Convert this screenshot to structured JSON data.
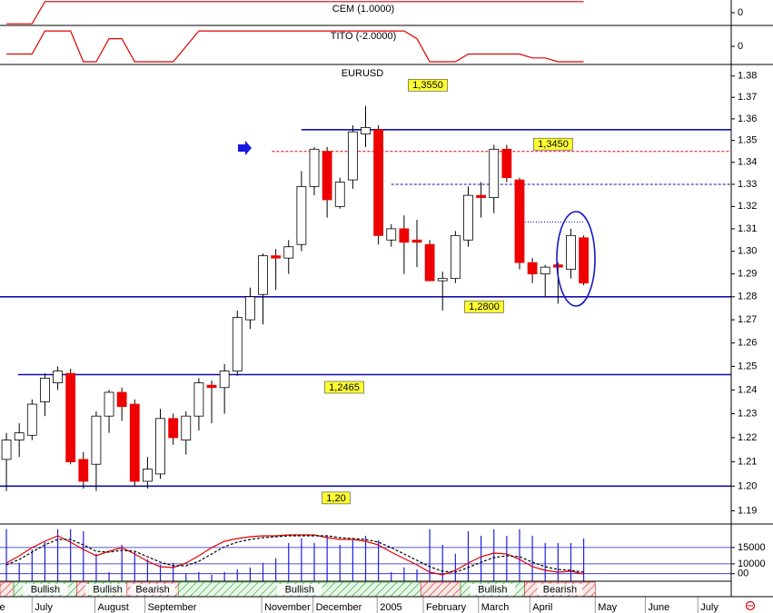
{
  "chart_data": [
    {
      "type": "line",
      "title": "CEM (1.0000)",
      "ylim": [
        -1.15,
        1.15
      ],
      "yticks": [
        0
      ],
      "series": [
        {
          "name": "CEM (1.0000)",
          "color": "#e00000",
          "values": [
            -1,
            -1,
            -1,
            1,
            1,
            1,
            1,
            1,
            1,
            1,
            1,
            1,
            1,
            1,
            1,
            1,
            1,
            1,
            1,
            1,
            1,
            1,
            1,
            1,
            1,
            1,
            1,
            1,
            1,
            1,
            1,
            1,
            1,
            1,
            1,
            1,
            1,
            1,
            1,
            1,
            1,
            1,
            1,
            1,
            1,
            1
          ]
        }
      ]
    },
    {
      "type": "line",
      "title": "TITO (-2.0000)",
      "ylim": [
        -2.35,
        2.6
      ],
      "yticks": [
        0
      ],
      "series": [
        {
          "name": "TITO (-2.0000)",
          "color": "#e00000",
          "values": [
            -1,
            -1,
            -1,
            2,
            2,
            2,
            -2,
            -2,
            1,
            1,
            -2,
            -2,
            -2,
            -2,
            0,
            2,
            2,
            2,
            2,
            2,
            2,
            2,
            2,
            2,
            2,
            2,
            2,
            2,
            2,
            2,
            2,
            2,
            1,
            -2,
            -2,
            -2,
            -1,
            -1,
            -1,
            -1,
            -1,
            -1.5,
            -1.5,
            -2,
            -2,
            -2
          ]
        }
      ]
    },
    {
      "type": "candlestick",
      "title": "EURUSD",
      "log_scale": true,
      "x": [
        0,
        1,
        2,
        3,
        4,
        5,
        6,
        7,
        8,
        9,
        10,
        11,
        12,
        13,
        14,
        15,
        16,
        17,
        18,
        19,
        20,
        21,
        22,
        23,
        24,
        25,
        26,
        27,
        28,
        29,
        30,
        31,
        32,
        33,
        34,
        35,
        36,
        37,
        38,
        39,
        40,
        41,
        42,
        43,
        44,
        45
      ],
      "xlim": [
        -0.5,
        56.5
      ],
      "xticks": [
        {
          "value": -0.75,
          "label": "e"
        },
        {
          "value": 2.0,
          "label": "July"
        },
        {
          "value": 6.9,
          "label": "August"
        },
        {
          "value": 10.8,
          "label": "September"
        },
        {
          "value": 19.9,
          "label": "November"
        },
        {
          "value": 23.9,
          "label": "December"
        },
        {
          "value": 28.9,
          "label": "2005"
        },
        {
          "value": 32.5,
          "label": "February"
        },
        {
          "value": 36.8,
          "label": "March"
        },
        {
          "value": 40.8,
          "label": "April"
        },
        {
          "value": 45.9,
          "label": "May"
        },
        {
          "value": 49.8,
          "label": "June"
        },
        {
          "value": 53.9,
          "label": "July"
        }
      ],
      "ylim": [
        1.185,
        1.385
      ],
      "yticks": [
        1.19,
        {
          "value": 1.2,
          "label": "1.20"
        },
        1.21,
        1.22,
        1.23,
        1.24,
        1.25,
        1.26,
        1.27,
        1.28,
        1.29,
        {
          "value": 1.3,
          "label": "1.30"
        },
        1.31,
        1.32,
        1.33,
        1.34,
        1.35,
        1.36,
        1.37,
        1.38
      ],
      "up_color": "#ffffff",
      "down_color": "#ee0000",
      "open": [
        1.211,
        1.219,
        1.221,
        1.235,
        1.243,
        1.247,
        1.211,
        1.209,
        1.229,
        1.239,
        1.234,
        1.202,
        1.205,
        1.228,
        1.219,
        1.229,
        1.242,
        1.241,
        1.248,
        1.27,
        1.281,
        1.298,
        1.297,
        1.303,
        1.329,
        1.345,
        1.32,
        1.332,
        1.353,
        1.355,
        1.305,
        1.31,
        1.305,
        1.303,
        1.287,
        1.288,
        1.305,
        1.325,
        1.324,
        1.346,
        1.332,
        1.295,
        1.29,
        1.294,
        1.292,
        1.306
      ],
      "high": [
        1.222,
        1.226,
        1.236,
        1.247,
        1.25,
        1.249,
        1.214,
        1.231,
        1.24,
        1.241,
        1.236,
        1.212,
        1.232,
        1.23,
        1.231,
        1.245,
        1.244,
        1.251,
        1.274,
        1.284,
        1.299,
        1.301,
        1.305,
        1.336,
        1.347,
        1.347,
        1.333,
        1.357,
        1.366,
        1.357,
        1.312,
        1.316,
        1.314,
        1.305,
        1.291,
        1.309,
        1.329,
        1.331,
        1.348,
        1.348,
        1.333,
        1.297,
        1.294,
        1.295,
        1.31,
        1.307
      ],
      "low": [
        1.198,
        1.212,
        1.219,
        1.229,
        1.24,
        1.209,
        1.199,
        1.198,
        1.222,
        1.227,
        1.2,
        1.199,
        1.203,
        1.217,
        1.213,
        1.223,
        1.226,
        1.23,
        1.246,
        1.266,
        1.268,
        1.283,
        1.29,
        1.3,
        1.325,
        1.315,
        1.319,
        1.328,
        1.347,
        1.303,
        1.302,
        1.29,
        1.293,
        1.287,
        1.274,
        1.286,
        1.302,
        1.315,
        1.317,
        1.331,
        1.292,
        1.286,
        1.28,
        1.277,
        1.288,
        1.285
      ],
      "close": [
        1.219,
        1.222,
        1.234,
        1.245,
        1.248,
        1.21,
        1.202,
        1.229,
        1.239,
        1.233,
        1.202,
        1.207,
        1.228,
        1.22,
        1.229,
        1.243,
        1.241,
        1.248,
        1.271,
        1.28,
        1.298,
        1.297,
        1.302,
        1.329,
        1.346,
        1.323,
        1.331,
        1.354,
        1.356,
        1.307,
        1.31,
        1.304,
        1.304,
        1.287,
        1.288,
        1.307,
        1.325,
        1.324,
        1.346,
        1.333,
        1.295,
        1.29,
        1.293,
        1.293,
        1.307,
        1.286
      ],
      "levels": [
        {
          "value": 1.355,
          "label": "1,3550",
          "start": 23,
          "style": "solid",
          "color": "#1010b0"
        },
        {
          "value": 1.345,
          "label": "1,3450",
          "start": 20.7,
          "style": "dashed",
          "color": "#e00000"
        },
        {
          "value": 1.33,
          "label": null,
          "start": 30,
          "style": "dashed",
          "color": "#1010b0"
        },
        {
          "value": 1.313,
          "label": null,
          "start": 40,
          "end": 45,
          "style": "dotted",
          "color": "#1010b0"
        },
        {
          "value": 1.28,
          "label": "1,2800",
          "start": -0.5,
          "style": "solid",
          "color": "#1010b0"
        },
        {
          "value": 1.2465,
          "label": "1,2465",
          "start": 0.9,
          "style": "solid",
          "color": "#1010b0"
        },
        {
          "value": 1.2,
          "label": "1,20",
          "start": -0.5,
          "style": "solid",
          "color": "#1010b0"
        }
      ]
    },
    {
      "type": "volume",
      "ylim": [
        4700,
        21900
      ],
      "yticks": [
        15000,
        10000,
        {
          "value": 7000,
          "label": "00"
        }
      ],
      "color": "#2020e0",
      "values": [
        20600,
        10300,
        14400,
        16700,
        20600,
        20600,
        20000,
        13100,
        7500,
        15800,
        13600,
        11400,
        9700,
        10300,
        6900,
        7500,
        6700,
        7500,
        8300,
        8900,
        10300,
        11700,
        16400,
        17800,
        16400,
        18600,
        15800,
        17200,
        18600,
        17200,
        7500,
        8900,
        8300,
        20600,
        15800,
        13100,
        20000,
        18600,
        20600,
        18600,
        20600,
        18600,
        16400,
        16400,
        16400,
        17800
      ],
      "oscillator": {
        "ylim": [
          0,
          62
        ],
        "series": [
          {
            "color": "#e00000",
            "style": "solid",
            "values": [
              20,
              28,
              37,
              44,
              50,
              43,
              35,
              28,
              33,
              37,
              30,
              22,
              16,
              15,
              20,
              28,
              37,
              44,
              47,
              49,
              50,
              50,
              51,
              51,
              51,
              48,
              46,
              46,
              44,
              40,
              32,
              25,
              18,
              10,
              7,
              12,
              20,
              27,
              31,
              30,
              24,
              16,
              12,
              10,
              11,
              8
            ]
          },
          {
            "color": "#000000",
            "style": "dashed",
            "values": [
              18,
              24,
              32,
              40,
              46,
              46,
              40,
              33,
              32,
              34,
              33,
              27,
              21,
              17,
              17,
              22,
              30,
              38,
              43,
              46,
              48,
              49,
              50,
              50,
              50,
              50,
              48,
              47,
              46,
              43,
              37,
              30,
              23,
              16,
              11,
              10,
              15,
              21,
              26,
              28,
              27,
              21,
              16,
              13,
              12,
              10
            ]
          }
        ]
      },
      "regimes": [
        {
          "start": -0.5,
          "end": 0.57,
          "color": "red",
          "label": null
        },
        {
          "start": 0.57,
          "end": 5.5,
          "color": "green",
          "label": "Bullish"
        },
        {
          "start": 5.5,
          "end": 6.4,
          "color": "red",
          "label": null
        },
        {
          "start": 6.4,
          "end": 9.4,
          "color": "green",
          "label": "Bullish"
        },
        {
          "start": 9.4,
          "end": 13.4,
          "color": "red",
          "label": "Bearish"
        },
        {
          "start": 13.4,
          "end": 32.3,
          "color": "green",
          "label": "Bullish"
        },
        {
          "start": 32.3,
          "end": 35.4,
          "color": "red",
          "label": null
        },
        {
          "start": 35.4,
          "end": 40.4,
          "color": "green",
          "label": "Bullish"
        },
        {
          "start": 40.4,
          "end": 45.9,
          "color": "red",
          "label": "Bearish"
        }
      ]
    }
  ]
}
